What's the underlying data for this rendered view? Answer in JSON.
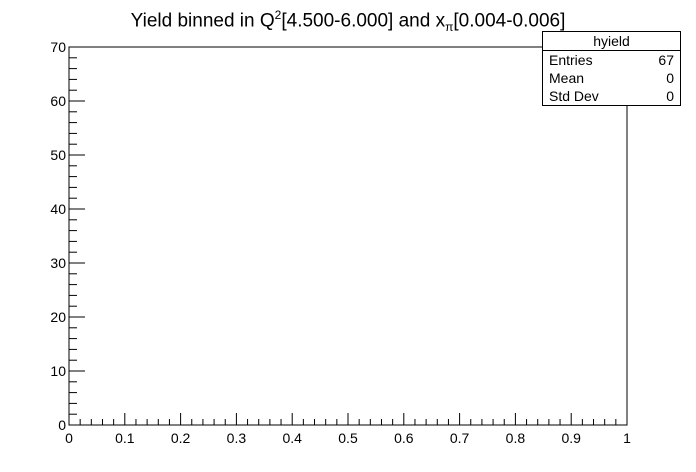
{
  "title": {
    "prefix": "Yield binned in Q",
    "sup": "2",
    "middle": "[4.500-6.000] and x",
    "sub": "π",
    "suffix": "[0.004-0.006]"
  },
  "stats": {
    "name": "hyield",
    "rows": [
      {
        "label": "Entries",
        "value": "67"
      },
      {
        "label": "Mean",
        "value": "0"
      },
      {
        "label": "Std Dev",
        "value": "0"
      }
    ]
  },
  "chart_data": {
    "type": "bar",
    "title": "Yield binned in Q^2[4.500-6.000] and x_π[0.004-0.006]",
    "xlabel": "",
    "ylabel": "",
    "xlim": [
      0,
      1
    ],
    "ylim": [
      0,
      70
    ],
    "x_ticks": [
      "0",
      "0.1",
      "0.2",
      "0.3",
      "0.4",
      "0.5",
      "0.6",
      "0.7",
      "0.8",
      "0.9",
      "1"
    ],
    "y_ticks": [
      "0",
      "10",
      "20",
      "30",
      "40",
      "50",
      "60",
      "70"
    ],
    "grid": false,
    "legend": "top-right",
    "values": []
  }
}
